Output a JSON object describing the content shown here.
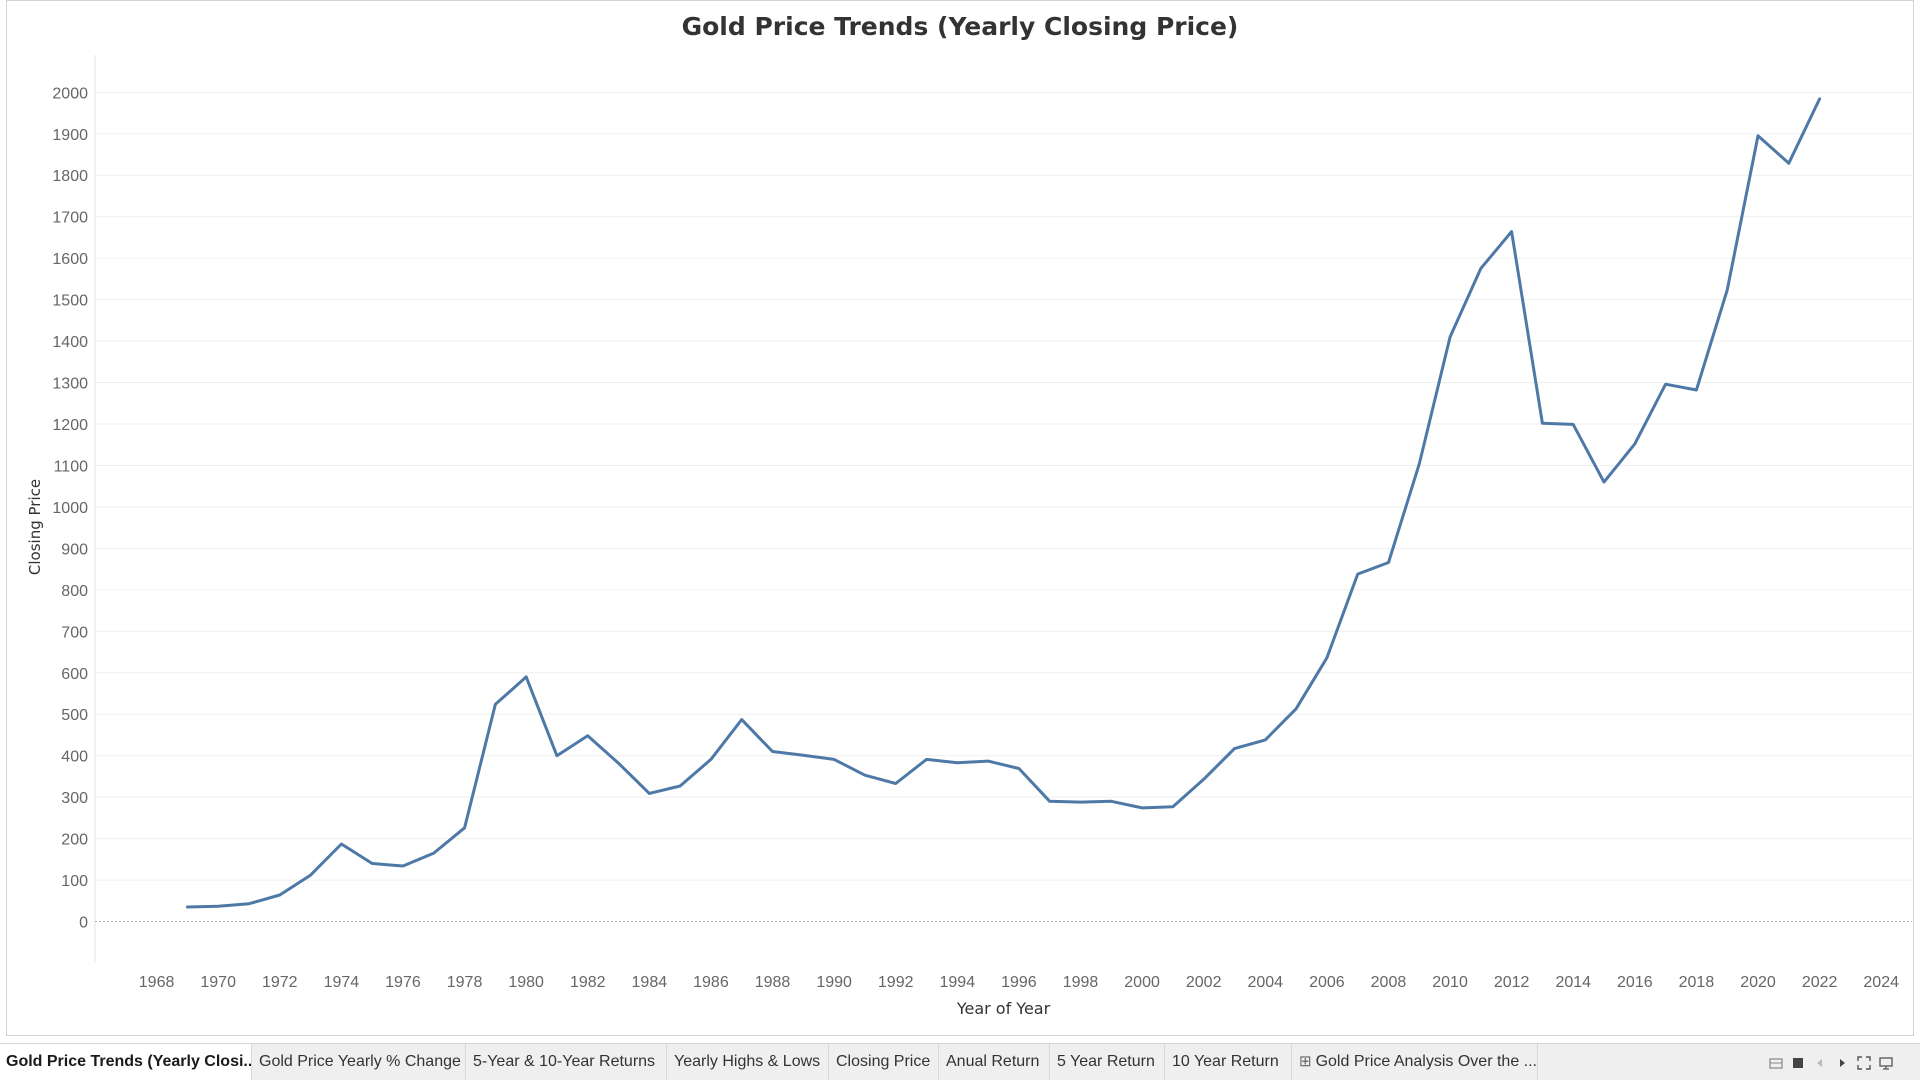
{
  "chart_data": {
    "type": "line",
    "title": "Gold Price Trends (Yearly Closing Price)",
    "xlabel": "Year of Year",
    "ylabel": "Closing Price",
    "xlim": [
      1966,
      2025
    ],
    "ylim": [
      -100,
      2090
    ],
    "x_ticks": [
      1968,
      1970,
      1972,
      1974,
      1976,
      1978,
      1980,
      1982,
      1984,
      1986,
      1988,
      1990,
      1992,
      1994,
      1996,
      1998,
      2000,
      2002,
      2004,
      2006,
      2008,
      2010,
      2012,
      2014,
      2016,
      2018,
      2020,
      2022,
      2024
    ],
    "y_ticks": [
      0,
      100,
      200,
      300,
      400,
      500,
      600,
      700,
      800,
      900,
      1000,
      1100,
      1200,
      1300,
      1400,
      1500,
      1600,
      1700,
      1800,
      1900,
      2000
    ],
    "grid": true,
    "line_color": "#4e79a7",
    "x": [
      1969,
      1970,
      1971,
      1972,
      1973,
      1974,
      1975,
      1976,
      1977,
      1978,
      1979,
      1980,
      1981,
      1982,
      1983,
      1984,
      1985,
      1986,
      1987,
      1988,
      1989,
      1990,
      1991,
      1992,
      1993,
      1994,
      1995,
      1996,
      1997,
      1998,
      1999,
      2000,
      2001,
      2002,
      2003,
      2004,
      2005,
      2006,
      2007,
      2008,
      2009,
      2010,
      2011,
      2012,
      2013,
      2014,
      2015,
      2016,
      2017,
      2018,
      2019,
      2020,
      2021,
      2022
    ],
    "y": [
      35,
      37,
      43,
      64,
      112,
      187,
      140,
      134,
      165,
      226,
      524,
      590,
      400,
      448,
      382,
      309,
      327,
      391,
      487,
      410,
      401,
      391,
      353,
      333,
      391,
      383,
      387,
      369,
      290,
      288,
      290,
      274,
      277,
      343,
      417,
      438,
      513,
      636,
      838,
      866,
      1104,
      1410,
      1575,
      1664,
      1202,
      1199,
      1060,
      1152,
      1296,
      1282,
      1523,
      1895,
      1829,
      1984
    ]
  },
  "tabs": [
    {
      "label": "Gold Price Trends (Yearly Closi...",
      "active": true
    },
    {
      "label": "Gold Price Yearly % Change"
    },
    {
      "label": "5-Year & 10-Year Returns"
    },
    {
      "label": "Yearly Highs & Lows"
    },
    {
      "label": "Closing Price"
    },
    {
      "label": "Anual Return"
    },
    {
      "label": "5 Year Return"
    },
    {
      "label": "10 Year Return"
    },
    {
      "label": "Gold Price Analysis Over the ...",
      "icon": "dashboard-grid-icon"
    }
  ],
  "controls": [
    "filmstrip-icon",
    "grid-view-icon",
    "prev-sheet-icon",
    "next-sheet-icon",
    "fullscreen-icon",
    "presentation-icon"
  ]
}
